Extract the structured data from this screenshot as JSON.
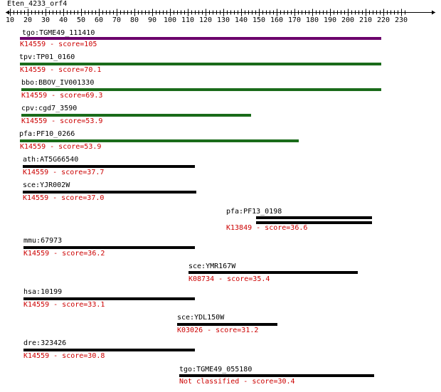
{
  "query": {
    "title": "Eten_4233_orf4"
  },
  "ruler": {
    "labels": [
      "10",
      "20",
      "30",
      "40",
      "50",
      "60",
      "70",
      "80",
      "90",
      "100",
      "110",
      "120",
      "130",
      "140",
      "150",
      "160",
      "170",
      "180",
      "190",
      "200",
      "210",
      "220",
      "230"
    ]
  },
  "colors": {
    "score_text": "#cc0000",
    "purple_bar": "#6b006b",
    "green_bar": "#1a6b1a",
    "black_bar": "#000000"
  },
  "hits": [
    {
      "gene": "tgo:TGME49_111410",
      "score_label": "K14559 - score=105",
      "bar_color": "purple"
    },
    {
      "gene": "tpv:TP01_0160",
      "score_label": "K14559 - score=70.1",
      "bar_color": "green"
    },
    {
      "gene": "bbo:BBOV_IV001330",
      "score_label": "K14559 - score=69.3",
      "bar_color": "green"
    },
    {
      "gene": "cpv:cgd7_3590",
      "score_label": "K14559 - score=53.9",
      "bar_color": "green"
    },
    {
      "gene": "pfa:PF10_0266",
      "score_label": "K14559 - score=53.9",
      "bar_color": "green"
    },
    {
      "gene": "ath:AT5G66540",
      "score_label": "K14559 - score=37.7",
      "bar_color": "black"
    },
    {
      "gene": "sce:YJR002W",
      "score_label": "K14559 - score=37.0",
      "bar_color": "black"
    },
    {
      "gene": "pfa:PF13_0198",
      "score_label": "K13849 - score=36.6",
      "bar_color": "black"
    },
    {
      "gene": "mmu:67973",
      "score_label": "K14559 - score=36.2",
      "bar_color": "black"
    },
    {
      "gene": "sce:YMR167W",
      "score_label": "K08734 - score=35.4",
      "bar_color": "black"
    },
    {
      "gene": "hsa:10199",
      "score_label": "K14559 - score=33.1",
      "bar_color": "black"
    },
    {
      "gene": "sce:YDL150W",
      "score_label": "K03026 - score=31.2",
      "bar_color": "black"
    },
    {
      "gene": "dre:323426",
      "score_label": "K14559 - score=30.8",
      "bar_color": "black"
    },
    {
      "gene": "tgo:TGME49_055180",
      "score_label": "Not classified - score=30.4",
      "bar_color": "black"
    }
  ]
}
